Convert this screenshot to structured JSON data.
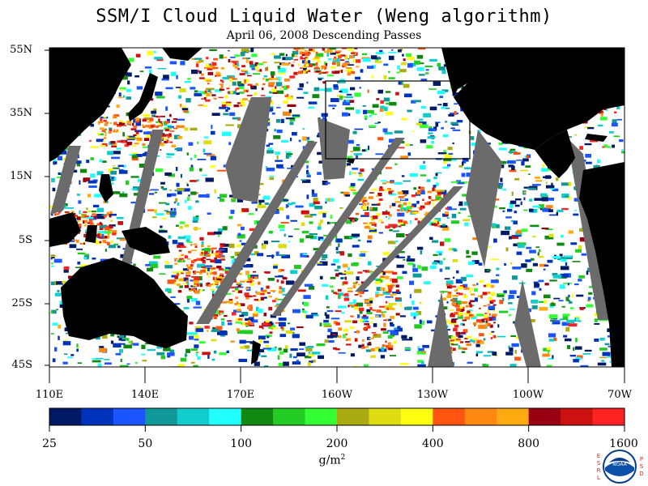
{
  "title": "SSM/I Cloud Liquid Water (Weng algorithm)",
  "subtitle": "April 06, 2008  Descending Passes",
  "latitude_labels": [
    "55N",
    "35N",
    "15N",
    "5S",
    "25S",
    "45S"
  ],
  "longitude_labels": [
    "110E",
    "140E",
    "170E",
    "160W",
    "130W",
    "100W",
    "70W"
  ],
  "colorbar": {
    "tick_labels": [
      "25",
      "50",
      "100",
      "200",
      "400",
      "800",
      "1600"
    ],
    "colors": [
      "#001a66",
      "#0033bb",
      "#1a55ff",
      "#119999",
      "#11cccc",
      "#22ffff",
      "#118811",
      "#22cc22",
      "#33ff33",
      "#aaaa11",
      "#dddd11",
      "#ffff11",
      "#ff5511",
      "#ff8811",
      "#ffaa11",
      "#990011",
      "#cc1111",
      "#ff2222"
    ]
  },
  "units": "g/m",
  "units_exponent": "2",
  "logo": {
    "left_letters": "ESRL",
    "right_letters": "PSD",
    "center_text": "NOAA"
  },
  "colors": {
    "land": "#000000",
    "no_data": "#6b6b6b",
    "clear": "#ffffff"
  }
}
